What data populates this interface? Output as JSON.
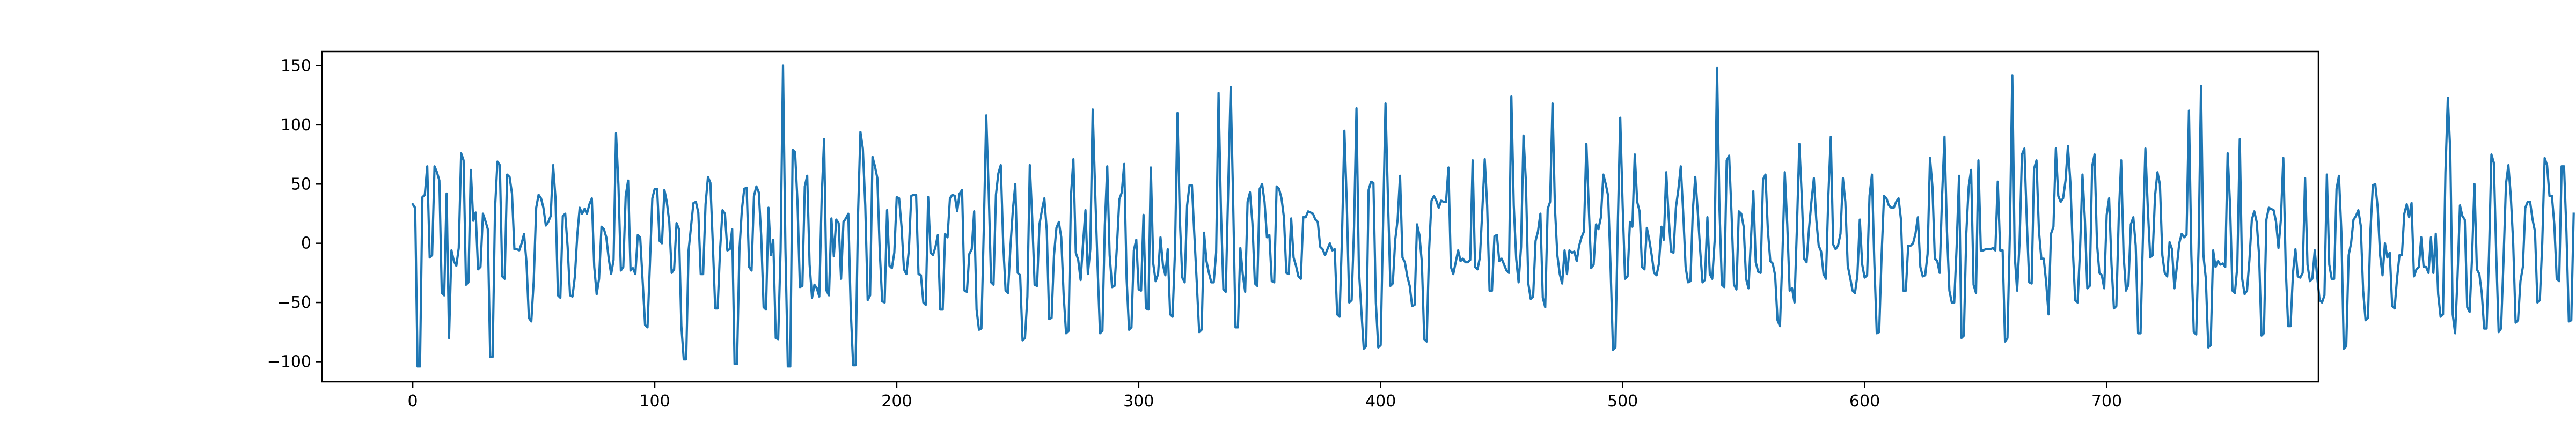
{
  "chart_data": {
    "type": "line",
    "title": "",
    "xlabel": "",
    "ylabel": "",
    "xlim": [
      -37.5,
      787.5
    ],
    "ylim": [
      -117,
      162
    ],
    "xticks": [
      0,
      100,
      200,
      300,
      400,
      500,
      600,
      700
    ],
    "yticks": [
      -100,
      -50,
      0,
      50,
      100,
      150
    ],
    "x_tick_labels": [
      "0",
      "100",
      "200",
      "300",
      "400",
      "500",
      "600",
      "700"
    ],
    "y_tick_labels": [
      "−100",
      "−50",
      "0",
      "50",
      "100",
      "150"
    ],
    "grid": false,
    "legend": "none",
    "series": [
      {
        "color": "#1f77b4",
        "x_start": 0,
        "x_step": 1,
        "values": [
          33,
          30,
          -104,
          -104,
          39,
          41,
          65,
          -12,
          -10,
          65,
          60,
          53,
          -42,
          -44,
          42,
          -80,
          -6,
          -15,
          -19,
          -4,
          76,
          70,
          -35,
          -33,
          62,
          19,
          26,
          -22,
          -20,
          25,
          19,
          12,
          -96,
          -96,
          29,
          69,
          66,
          -28,
          -30,
          58,
          56,
          42,
          -5,
          -5,
          -6,
          0,
          8,
          -16,
          -63,
          -66,
          -32,
          30,
          41,
          38,
          30,
          15,
          18,
          23,
          66,
          38,
          -44,
          -46,
          23,
          25,
          -3,
          -44,
          -45,
          -28,
          7,
          30,
          25,
          29,
          25,
          33,
          38,
          -20,
          -43,
          -30,
          14,
          12,
          5,
          -13,
          -26,
          -14,
          93,
          49,
          -23,
          -20,
          40,
          53,
          -23,
          -21,
          -26,
          7,
          5,
          -32,
          -69,
          -71,
          -18,
          38,
          46,
          46,
          2,
          0,
          45,
          35,
          18,
          -25,
          -22,
          17,
          12,
          -70,
          -98,
          -98,
          -6,
          14,
          34,
          35,
          26,
          -26,
          -26,
          33,
          56,
          51,
          0,
          -55,
          -55,
          -6,
          28,
          25,
          -6,
          -5,
          12,
          -102,
          -102,
          -6,
          28,
          46,
          47,
          -20,
          -23,
          40,
          48,
          43,
          6,
          -54,
          -56,
          30,
          -10,
          3,
          -80,
          -81,
          -6,
          150,
          -4,
          -104,
          -104,
          79,
          77,
          35,
          -37,
          -36,
          48,
          57,
          -18,
          -46,
          -35,
          -38,
          -45,
          39,
          88,
          -40,
          -44,
          21,
          -11,
          20,
          17,
          -30,
          18,
          21,
          25,
          -56,
          -103,
          -103,
          24,
          94,
          80,
          32,
          -48,
          -44,
          73,
          65,
          55,
          -7,
          -49,
          -50,
          28,
          -19,
          -21,
          -8,
          39,
          38,
          14,
          -22,
          -26,
          -6,
          40,
          41,
          41,
          -26,
          -27,
          -50,
          -52,
          39,
          -8,
          -10,
          -3,
          7,
          -56,
          -56,
          8,
          5,
          38,
          41,
          40,
          27,
          42,
          45,
          -40,
          -41,
          -9,
          -5,
          27,
          -56,
          -73,
          -72,
          13,
          108,
          44,
          -33,
          -35,
          41,
          59,
          66,
          0,
          -40,
          -42,
          -3,
          28,
          50,
          -25,
          -27,
          -82,
          -80,
          -45,
          66,
          21,
          -35,
          -36,
          16,
          28,
          38,
          11,
          -64,
          -63,
          -10,
          13,
          18,
          5,
          -44,
          -76,
          -74,
          40,
          71,
          -8,
          -14,
          -31,
          0,
          28,
          -26,
          -5,
          113,
          44,
          -20,
          -76,
          -74,
          15,
          65,
          -10,
          -37,
          -36,
          -3,
          37,
          43,
          67,
          -30,
          -73,
          -71,
          -6,
          3,
          -39,
          -40,
          24,
          -55,
          -56,
          64,
          -17,
          -32,
          -26,
          5,
          -18,
          -27,
          -5,
          -60,
          -62,
          -6,
          110,
          20,
          -29,
          -33,
          32,
          49,
          49,
          7,
          -33,
          -75,
          -73,
          9,
          -15,
          -25,
          -33,
          -33,
          -8,
          127,
          27,
          -39,
          -41,
          48,
          132,
          38,
          -71,
          -71,
          -4,
          -26,
          -41,
          35,
          43,
          17,
          -34,
          -36,
          46,
          50,
          35,
          5,
          7,
          -32,
          -33,
          48,
          46,
          38,
          22,
          -25,
          -26,
          21,
          -12,
          -19,
          -28,
          -30,
          22,
          22,
          27,
          26,
          25,
          20,
          18,
          -3,
          -5,
          -10,
          -5,
          0,
          -6,
          -5,
          -60,
          -62,
          5,
          95,
          33,
          -50,
          -48,
          14,
          114,
          -22,
          -57,
          -89,
          -87,
          45,
          52,
          51,
          -50,
          -88,
          -86,
          17,
          118,
          37,
          -36,
          -34,
          3,
          20,
          57,
          -12,
          -16,
          -28,
          -36,
          -53,
          -52,
          16,
          7,
          -16,
          -81,
          -83,
          -6,
          36,
          40,
          36,
          30,
          36,
          35,
          35,
          64,
          -20,
          -26,
          -16,
          -6,
          -15,
          -13,
          -16,
          -16,
          -14,
          70,
          -20,
          -22,
          -12,
          28,
          71,
          32,
          -40,
          -40,
          6,
          7,
          -15,
          -13,
          -18,
          -23,
          -25,
          124,
          32,
          -13,
          -33,
          -3,
          91,
          52,
          -34,
          -47,
          -45,
          2,
          10,
          25,
          -46,
          -54,
          29,
          35,
          118,
          30,
          -10,
          -26,
          -34,
          -6,
          -26,
          -6,
          -8,
          -7,
          -15,
          -2,
          5,
          10,
          84,
          30,
          -21,
          -18,
          16,
          12,
          22,
          58,
          50,
          40,
          -20,
          -90,
          -88,
          16,
          106,
          32,
          -30,
          -28,
          18,
          14,
          75,
          35,
          27,
          -20,
          -22,
          13,
          3,
          -10,
          -25,
          -27,
          -17,
          14,
          3,
          60,
          22,
          -7,
          -8,
          30,
          45,
          65,
          26,
          -20,
          -33,
          -32,
          28,
          56,
          28,
          -5,
          -33,
          -31,
          22,
          -26,
          -30,
          2,
          148,
          30,
          -35,
          -37,
          70,
          74,
          25,
          -35,
          -39,
          27,
          25,
          14,
          -30,
          -38,
          3,
          44,
          -16,
          -24,
          -25,
          54,
          58,
          11,
          -15,
          -17,
          -27,
          -65,
          -70,
          -12,
          60,
          16,
          -40,
          -38,
          -50,
          13,
          84,
          40,
          -13,
          -16,
          12,
          35,
          55,
          20,
          -2,
          -7,
          -26,
          -30,
          40,
          90,
          -1,
          -5,
          -2,
          8,
          55,
          35,
          -19,
          -29,
          -40,
          -42,
          -27,
          20,
          -18,
          -29,
          -27,
          40,
          58,
          -17,
          -76,
          -75,
          -10,
          40,
          38,
          32,
          30,
          30,
          35,
          38,
          20,
          -40,
          -40,
          -2,
          -2,
          0,
          8,
          22,
          -20,
          -28,
          -27,
          -9,
          72,
          48,
          -13,
          -15,
          -25,
          40,
          90,
          10,
          -40,
          -50,
          -50,
          -3,
          57,
          -80,
          -78,
          8,
          48,
          62,
          -35,
          -42,
          70,
          -6,
          -6,
          -5,
          -5,
          -5,
          -4,
          -6,
          52,
          -6,
          -6,
          -83,
          -80,
          8,
          142,
          -10,
          -40,
          0,
          75,
          80,
          18,
          -33,
          -34,
          63,
          70,
          11,
          -13,
          -13,
          -33,
          -60,
          8,
          14,
          80,
          40,
          35,
          38,
          53,
          82,
          52,
          -4,
          -48,
          -50,
          -5,
          58,
          20,
          -38,
          -36,
          65,
          75,
          0,
          -25,
          -27,
          -38,
          24,
          38,
          -18,
          -55,
          -53,
          22,
          70,
          -10,
          -40,
          -35,
          16,
          22,
          -2,
          -76,
          -76,
          6,
          80,
          30,
          -12,
          -10,
          40,
          60,
          50,
          -10,
          -25,
          -28,
          1,
          -5,
          -38,
          -20,
          0,
          8,
          5,
          7,
          112,
          -10,
          -75,
          -77,
          -3,
          133,
          -10,
          -30,
          -88,
          -86,
          -6,
          -20,
          -15,
          -18,
          -17,
          -20,
          76,
          32,
          -40,
          -42,
          -20,
          88,
          -30,
          -43,
          -40,
          -14,
          20,
          27,
          18,
          -10,
          -78,
          -76,
          20,
          30,
          29,
          28,
          18,
          -4,
          20,
          72,
          -20,
          -70,
          -70,
          -25,
          -5,
          -28,
          -29,
          -25,
          55,
          -18,
          -32,
          -30,
          -6,
          -28,
          -48,
          -50,
          -44,
          58,
          -18,
          -30,
          -30,
          46,
          57,
          10,
          -89,
          -87,
          -10,
          0,
          20,
          23,
          28,
          15,
          -40,
          -65,
          -63,
          10,
          49,
          50,
          30,
          -10,
          -27,
          0,
          -12,
          -8,
          -53,
          -55,
          -30,
          -10,
          -10,
          25,
          33,
          22,
          34,
          -28,
          -22,
          -20,
          5,
          -20,
          -20,
          -25,
          5,
          -25,
          8,
          -43,
          -62,
          -60,
          60,
          123,
          78,
          -60,
          -76,
          -28,
          32,
          23,
          20,
          -54,
          -58,
          -12,
          50,
          -22,
          -26,
          -42,
          -72,
          -72,
          -10,
          75,
          68,
          -10,
          -75,
          -72,
          -15,
          50,
          66,
          40,
          0,
          -67,
          -65,
          -32,
          -20,
          30,
          35,
          35,
          20,
          10,
          -50,
          -48,
          0,
          72,
          66,
          40,
          40,
          16,
          -30,
          -32,
          65,
          65,
          10,
          -66,
          -65,
          25
        ]
      }
    ]
  }
}
